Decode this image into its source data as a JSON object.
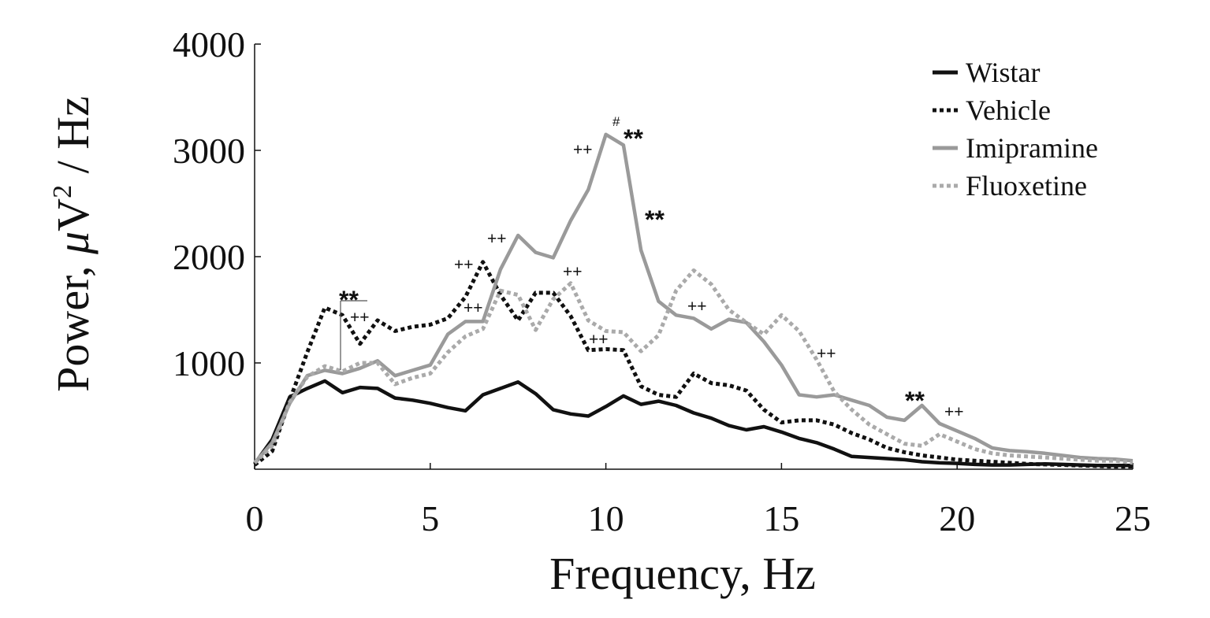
{
  "chart_data": {
    "type": "line",
    "title": "",
    "xlabel": "Frequency, Hz",
    "ylabel_prefix": "Power, ",
    "ylabel_unit_mu": "μ",
    "ylabel_unit_v": "V",
    "ylabel_exp": "2",
    "ylabel_suffix": " / Hz",
    "xlim": [
      0,
      25
    ],
    "ylim": [
      0,
      4000
    ],
    "xticks": [
      0,
      5,
      10,
      15,
      20,
      25
    ],
    "yticks": [
      1000,
      2000,
      3000,
      4000
    ],
    "xtick_labels": [
      "0",
      "5",
      "10",
      "15",
      "20",
      "25"
    ],
    "ytick_labels": [
      "1000",
      "2000",
      "3000",
      "4000"
    ],
    "grid": false,
    "legend_position": "top-right",
    "x": [
      0,
      0.5,
      1,
      1.5,
      2,
      2.5,
      3,
      3.5,
      4,
      4.5,
      5,
      5.5,
      6,
      6.5,
      7,
      7.5,
      8,
      8.5,
      9,
      9.5,
      10,
      10.5,
      11,
      11.5,
      12,
      12.5,
      13,
      13.5,
      14,
      14.5,
      15,
      15.5,
      16,
      16.5,
      17,
      17.5,
      18,
      18.5,
      19,
      19.5,
      20,
      20.5,
      21,
      21.5,
      22,
      22.5,
      23,
      23.5,
      24,
      24.5,
      25
    ],
    "series": [
      {
        "name": "Wistar",
        "color": "#111111",
        "style": "solid",
        "values": [
          50,
          280,
          680,
          760,
          830,
          720,
          770,
          760,
          670,
          650,
          620,
          580,
          550,
          700,
          760,
          820,
          710,
          560,
          520,
          500,
          590,
          690,
          610,
          640,
          600,
          530,
          480,
          410,
          370,
          400,
          350,
          290,
          250,
          190,
          120,
          110,
          100,
          90,
          70,
          60,
          55,
          45,
          40,
          40,
          45,
          50,
          45,
          40,
          35,
          35,
          35
        ]
      },
      {
        "name": "Vehicle",
        "color": "#111111",
        "style": "dotted",
        "values": [
          40,
          170,
          650,
          1100,
          1520,
          1450,
          1180,
          1400,
          1300,
          1340,
          1360,
          1420,
          1620,
          1950,
          1640,
          1400,
          1660,
          1660,
          1440,
          1120,
          1130,
          1120,
          780,
          700,
          680,
          900,
          810,
          790,
          740,
          560,
          440,
          460,
          460,
          420,
          340,
          280,
          200,
          160,
          130,
          110,
          90,
          80,
          70,
          60,
          50,
          45,
          40,
          35,
          30,
          25,
          25
        ]
      },
      {
        "name": "Imipramine",
        "color": "#9a9a9a",
        "style": "solid",
        "values": [
          60,
          250,
          620,
          880,
          930,
          900,
          950,
          1020,
          880,
          930,
          980,
          1270,
          1390,
          1390,
          1880,
          2200,
          2040,
          1990,
          2340,
          2630,
          3150,
          3050,
          2060,
          1580,
          1450,
          1420,
          1320,
          1410,
          1380,
          1200,
          980,
          700,
          680,
          700,
          650,
          600,
          490,
          460,
          600,
          430,
          360,
          290,
          200,
          175,
          165,
          150,
          130,
          110,
          100,
          95,
          80
        ]
      },
      {
        "name": "Fluoxetine",
        "color": "#aaaaaa",
        "style": "dotted",
        "values": [
          60,
          220,
          630,
          870,
          970,
          920,
          1000,
          1000,
          800,
          860,
          900,
          1100,
          1250,
          1320,
          1680,
          1640,
          1310,
          1600,
          1750,
          1400,
          1300,
          1290,
          1110,
          1260,
          1680,
          1870,
          1740,
          1500,
          1380,
          1270,
          1450,
          1300,
          1030,
          730,
          560,
          420,
          330,
          240,
          220,
          330,
          260,
          190,
          150,
          130,
          120,
          110,
          100,
          90,
          80,
          80,
          60
        ]
      }
    ],
    "annotations": {
      "double_star": "**",
      "plus": "++",
      "hash": "#"
    }
  }
}
